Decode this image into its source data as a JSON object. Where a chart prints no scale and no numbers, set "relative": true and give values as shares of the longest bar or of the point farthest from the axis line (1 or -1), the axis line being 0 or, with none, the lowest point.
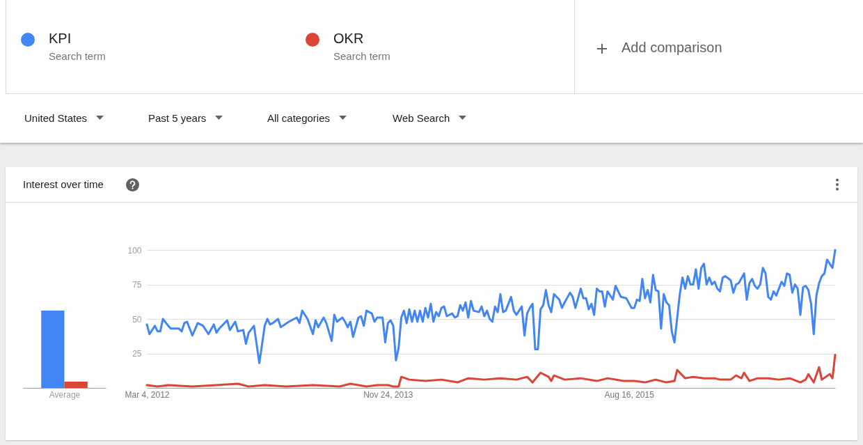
{
  "chart_data": [
    {
      "type": "bar",
      "categories": [
        null
      ],
      "xlabel": "Average",
      "relative": true,
      "series": [
        {
          "color": "#4285f4",
          "values": [
            1
          ]
        },
        {
          "color": "#db4437",
          "values": [
            0.08
          ]
        }
      ]
    },
    {
      "type": "line",
      "title": "Interest over time",
      "annotations": [
        "Search term",
        "Search term",
        "Add comparison",
        "United States",
        "Past 5 years",
        "All categories",
        "Web Search"
      ],
      "legend": "top",
      "grid": "y",
      "xlim": [
        "2012-03-04",
        "2017-02-05"
      ],
      "xticks": [
        {
          "value": "2012-03-04",
          "label": "Mar 4, 2012"
        },
        {
          "value": "2013-11-24",
          "label": "Nov 24, 2013"
        },
        {
          "value": "2015-08-16",
          "label": "Aug 16, 2015"
        }
      ],
      "ylim": [
        0,
        100
      ],
      "yticks": [
        {
          "value": 0,
          "label": null
        },
        25,
        50,
        75,
        100
      ],
      "series": [
        {
          "name": "KPI",
          "color": "#4285f4",
          "x": [
            "2012-03-04",
            "2012-03-11",
            "2012-03-25",
            "2012-04-01",
            "2012-04-08",
            "2012-04-15",
            "2012-04-29",
            "2012-05-06",
            "2012-05-27",
            "2012-06-03",
            "2012-06-10",
            "2012-06-17",
            "2012-07-01",
            "2012-07-15",
            "2012-07-29",
            "2012-08-12",
            "2012-08-26",
            "2012-09-02",
            "2012-09-09",
            "2012-09-30",
            "2012-10-07",
            "2012-10-21",
            "2012-10-28",
            "2012-11-11",
            "2012-11-18",
            "2012-11-25",
            "2012-12-09",
            "2012-12-23",
            "2013-01-06",
            "2013-01-13",
            "2013-01-20",
            "2013-01-27",
            "2013-02-10",
            "2013-02-17",
            "2013-03-10",
            "2013-03-31",
            "2013-04-07",
            "2013-04-14",
            "2013-04-28",
            "2013-05-12",
            "2013-05-19",
            "2013-05-26",
            "2013-06-09",
            "2013-06-16",
            "2013-06-30",
            "2013-07-07",
            "2013-07-14",
            "2013-07-28",
            "2013-08-04",
            "2013-08-11",
            "2013-08-18",
            "2013-08-25",
            "2013-09-08",
            "2013-09-15",
            "2013-09-22",
            "2013-09-29",
            "2013-10-13",
            "2013-10-20",
            "2013-10-27",
            "2013-11-10",
            "2013-11-17",
            "2013-11-24",
            "2013-12-01",
            "2013-12-08",
            "2013-12-15",
            "2013-12-22",
            "2013-12-29",
            "2014-01-05",
            "2014-01-12",
            "2014-01-19",
            "2014-01-26",
            "2014-02-02",
            "2014-02-09",
            "2014-02-16",
            "2014-02-23",
            "2014-03-02",
            "2014-03-09",
            "2014-03-16",
            "2014-03-23",
            "2014-03-30",
            "2014-04-06",
            "2014-04-13",
            "2014-04-20",
            "2014-04-27",
            "2014-05-11",
            "2014-05-18",
            "2014-05-25",
            "2014-06-01",
            "2014-06-08",
            "2014-06-15",
            "2014-06-22",
            "2014-06-29",
            "2014-07-06",
            "2014-07-20",
            "2014-07-27",
            "2014-08-03",
            "2014-08-10",
            "2014-08-17",
            "2014-08-24",
            "2014-08-31",
            "2014-09-07",
            "2014-09-14",
            "2014-09-21",
            "2014-09-28",
            "2014-10-12",
            "2014-10-19",
            "2014-10-26",
            "2014-11-09",
            "2014-11-16",
            "2014-11-23",
            "2014-11-30",
            "2014-12-07",
            "2014-12-14",
            "2014-12-21",
            "2014-12-28",
            "2015-01-04",
            "2015-01-11",
            "2015-01-18",
            "2015-01-25",
            "2015-02-01",
            "2015-02-15",
            "2015-02-22",
            "2015-03-01",
            "2015-03-15",
            "2015-03-22",
            "2015-03-29",
            "2015-04-12",
            "2015-04-19",
            "2015-04-26",
            "2015-05-03",
            "2015-05-10",
            "2015-05-17",
            "2015-05-24",
            "2015-05-31",
            "2015-06-07",
            "2015-06-14",
            "2015-06-21",
            "2015-07-05",
            "2015-07-12",
            "2015-07-26",
            "2015-08-09",
            "2015-08-23",
            "2015-08-30",
            "2015-09-06",
            "2015-09-13",
            "2015-09-20",
            "2015-09-27",
            "2015-10-04",
            "2015-10-11",
            "2015-10-18",
            "2015-10-25",
            "2015-11-01",
            "2015-11-08",
            "2015-11-15",
            "2015-11-22",
            "2015-11-29",
            "2015-12-06",
            "2015-12-13",
            "2015-12-27",
            "2016-01-03",
            "2016-01-10",
            "2016-01-17",
            "2016-01-24",
            "2016-01-31",
            "2016-02-07",
            "2016-02-14",
            "2016-02-21",
            "2016-02-28",
            "2016-03-06",
            "2016-03-13",
            "2016-03-20",
            "2016-03-27",
            "2016-04-03",
            "2016-04-10",
            "2016-04-17",
            "2016-04-24",
            "2016-05-08",
            "2016-05-15",
            "2016-05-22",
            "2016-05-29",
            "2016-06-12",
            "2016-06-19",
            "2016-06-26",
            "2016-07-03",
            "2016-07-10",
            "2016-07-17",
            "2016-07-24",
            "2016-07-31",
            "2016-08-07",
            "2016-08-14",
            "2016-08-21",
            "2016-08-28",
            "2016-09-04",
            "2016-09-18",
            "2016-09-25",
            "2016-10-02",
            "2016-10-09",
            "2016-10-16",
            "2016-10-23",
            "2016-10-30",
            "2016-11-06",
            "2016-11-13",
            "2016-11-20",
            "2016-11-27",
            "2016-12-04",
            "2016-12-11",
            "2016-12-18",
            "2016-12-25",
            "2017-01-01",
            "2017-01-08",
            "2017-01-15",
            "2017-01-29",
            "2017-02-05"
          ],
          "values": [
            46,
            39,
            45,
            41,
            41,
            50,
            45,
            43,
            43,
            41,
            47,
            48,
            38,
            47,
            45,
            39,
            46,
            40,
            43,
            49,
            42,
            48,
            41,
            42,
            32,
            40,
            45,
            18,
            45,
            50,
            46,
            47,
            50,
            44,
            48,
            51,
            47,
            56,
            50,
            39,
            49,
            44,
            51,
            47,
            34,
            53,
            48,
            51,
            48,
            44,
            48,
            37,
            51,
            52,
            45,
            56,
            54,
            48,
            51,
            51,
            33,
            47,
            49,
            45,
            20,
            29,
            51,
            56,
            47,
            57,
            48,
            56,
            48,
            56,
            48,
            58,
            51,
            61,
            48,
            55,
            52,
            58,
            59,
            52,
            54,
            51,
            52,
            60,
            56,
            62,
            51,
            63,
            56,
            55,
            59,
            52,
            56,
            50,
            48,
            59,
            55,
            68,
            55,
            56,
            66,
            56,
            53,
            59,
            38,
            54,
            58,
            61,
            28,
            28,
            57,
            60,
            71,
            60,
            55,
            68,
            64,
            58,
            62,
            69,
            66,
            58,
            72,
            65,
            65,
            57,
            61,
            53,
            72,
            70,
            70,
            59,
            70,
            64,
            74,
            66,
            65,
            58,
            58,
            64,
            63,
            79,
            65,
            71,
            62,
            82,
            71,
            70,
            43,
            68,
            62,
            60,
            41,
            33,
            68,
            80,
            72,
            81,
            75,
            75,
            86,
            72,
            87,
            90,
            75,
            80,
            75,
            77,
            72,
            70,
            80,
            81,
            78,
            69,
            75,
            76,
            83,
            64,
            76,
            79,
            74,
            72,
            75,
            87,
            83,
            66,
            64,
            70,
            67,
            77,
            74,
            83,
            82,
            69,
            75,
            72,
            53,
            73,
            74,
            71,
            61,
            39,
            67,
            76,
            81,
            83,
            93,
            87,
            100
          ]
        },
        {
          "name": "OKR",
          "color": "#db4437",
          "x": [
            "2012-03-04",
            "2012-04-01",
            "2012-04-29",
            "2012-07-01",
            "2012-09-02",
            "2012-10-28",
            "2012-11-25",
            "2013-01-06",
            "2013-03-03",
            "2013-05-12",
            "2013-07-21",
            "2013-08-18",
            "2013-09-29",
            "2013-10-27",
            "2013-11-24",
            "2013-12-08",
            "2013-12-22",
            "2013-12-29",
            "2014-01-19",
            "2014-03-02",
            "2014-04-13",
            "2014-05-25",
            "2014-06-22",
            "2014-08-03",
            "2014-09-14",
            "2014-10-26",
            "2014-11-23",
            "2014-12-07",
            "2014-12-28",
            "2015-01-18",
            "2015-01-25",
            "2015-02-01",
            "2015-03-01",
            "2015-04-12",
            "2015-05-24",
            "2015-06-21",
            "2015-08-02",
            "2015-08-30",
            "2015-09-27",
            "2015-10-25",
            "2015-11-22",
            "2015-12-13",
            "2015-12-20",
            "2016-01-10",
            "2016-01-31",
            "2016-02-28",
            "2016-03-27",
            "2016-04-10",
            "2016-05-08",
            "2016-05-22",
            "2016-06-05",
            "2016-06-12",
            "2016-06-26",
            "2016-07-17",
            "2016-08-14",
            "2016-09-11",
            "2016-10-09",
            "2016-11-06",
            "2016-11-20",
            "2016-11-27",
            "2016-12-11",
            "2016-12-25",
            "2017-01-01",
            "2017-01-22",
            "2017-01-29",
            "2017-02-05"
          ],
          "values": [
            2,
            1,
            2,
            1,
            2,
            3,
            1,
            2,
            1,
            2,
            1,
            3,
            1,
            2,
            2,
            1,
            1,
            8,
            6,
            5,
            6,
            4,
            7,
            6,
            7,
            6,
            8,
            4,
            11,
            8,
            5,
            9,
            6,
            7,
            5,
            7,
            5,
            5,
            4,
            6,
            4,
            5,
            13,
            7,
            8,
            7,
            7,
            6,
            6,
            9,
            7,
            11,
            5,
            7,
            7,
            6,
            7,
            4,
            6,
            10,
            4,
            15,
            6,
            10,
            7,
            24
          ]
        }
      ]
    }
  ]
}
